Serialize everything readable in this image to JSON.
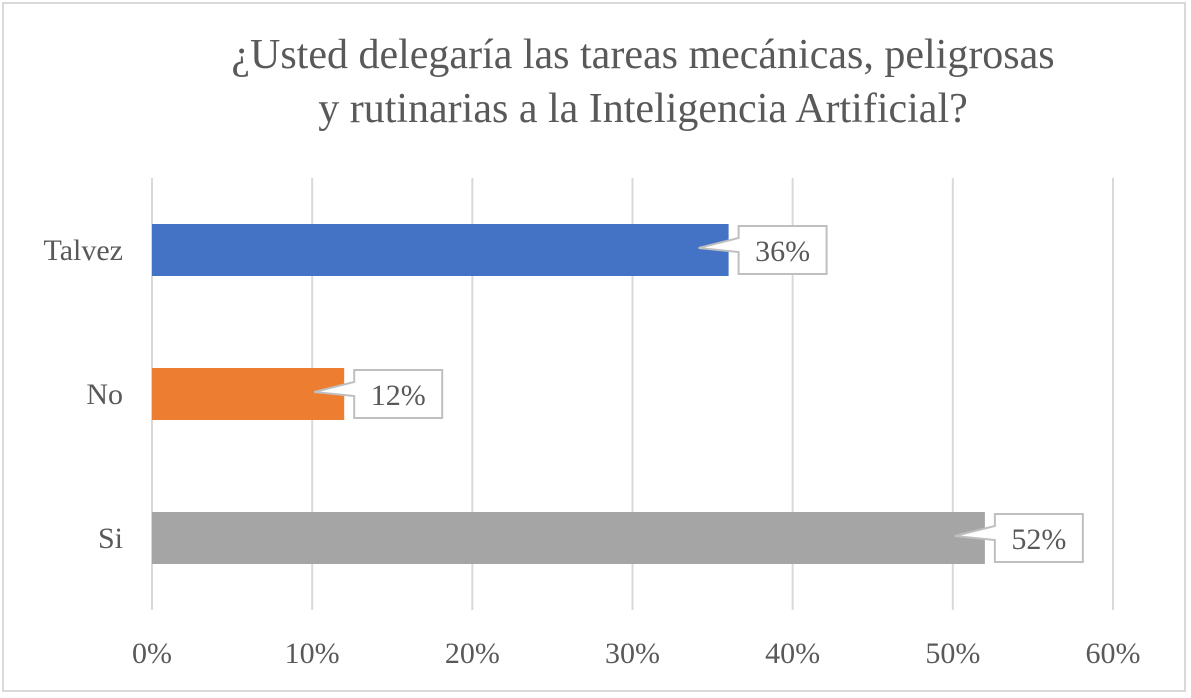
{
  "chart_data": {
    "type": "bar",
    "orientation": "horizontal",
    "title_lines": [
      "¿Usted delegaría las tareas mecánicas, peligrosas",
      "y rutinarias a la Inteligencia Artificial?"
    ],
    "categories": [
      "Talvez",
      "No",
      "Si"
    ],
    "values": [
      36,
      12,
      52
    ],
    "data_labels": [
      "36%",
      "12%",
      "52%"
    ],
    "bar_colors": [
      "#4472c4",
      "#ed7d31",
      "#a5a5a5"
    ],
    "xlim": [
      0,
      60
    ],
    "x_ticks": [
      0,
      10,
      20,
      30,
      40,
      50,
      60
    ],
    "x_tick_labels": [
      "0%",
      "10%",
      "20%",
      "30%",
      "40%",
      "50%",
      "60%"
    ],
    "grid": true,
    "legend": false,
    "xlabel": "",
    "ylabel": ""
  }
}
